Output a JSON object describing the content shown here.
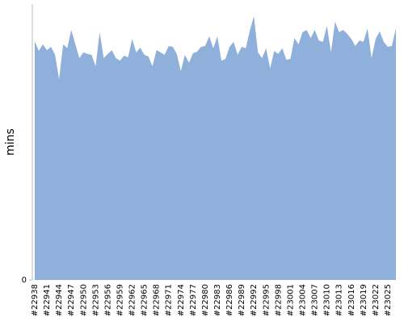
{
  "chart_data": {
    "type": "area",
    "y_label": "mins",
    "color": "#8fb0da",
    "categories": [
      "#22938",
      null,
      null,
      "#22941",
      null,
      null,
      "#22944",
      null,
      null,
      "#22947",
      null,
      null,
      "#22950",
      null,
      null,
      "#22953",
      null,
      null,
      "#22956",
      null,
      null,
      "#22959",
      null,
      null,
      "#22962",
      null,
      null,
      "#22965",
      null,
      null,
      "#22968",
      null,
      null,
      "#22971",
      null,
      null,
      "#22974",
      null,
      null,
      "#22977",
      null,
      null,
      "#22980",
      null,
      null,
      "#22983",
      null,
      null,
      "#22986",
      null,
      null,
      "#22989",
      null,
      null,
      "#22992",
      null,
      null,
      "#22995",
      null,
      null,
      "#22998",
      null,
      null,
      "#23001",
      null,
      null,
      "#23004",
      null,
      null,
      "#23007",
      null,
      null,
      "#23010",
      null,
      null,
      "#23013",
      null,
      null,
      "#23016",
      null,
      null,
      "#23019",
      null,
      null,
      "#23022",
      null,
      null,
      "#23025",
      null,
      null
    ],
    "values": [
      86.5,
      83,
      85.4,
      83.3,
      84.5,
      81.6,
      72.8,
      85.4,
      84,
      90.6,
      85.4,
      80.4,
      82.5,
      81.9,
      81.6,
      77.5,
      89.8,
      80.4,
      81.9,
      83.3,
      80.4,
      79.5,
      81.3,
      80.7,
      87.4,
      82.5,
      84.2,
      81.6,
      81,
      77.5,
      83.3,
      82.5,
      81.6,
      84.8,
      84.5,
      81.9,
      75.7,
      81.6,
      78.7,
      82.2,
      82.7,
      84.5,
      84.8,
      88.3,
      84,
      88.3,
      79.5,
      80.1,
      84.5,
      86.3,
      81.6,
      84.5,
      84,
      90.4,
      95.6,
      82.5,
      80.4,
      84,
      76.6,
      83,
      81.9,
      84,
      79.8,
      80.1,
      87.7,
      85.4,
      89.8,
      90.6,
      87.7,
      90.6,
      86.8,
      86.3,
      92.1,
      82.5,
      93.6,
      89.8,
      90.6,
      89.2,
      87.4,
      84.8,
      86.8,
      86.3,
      91.2,
      80.4,
      87.4,
      90.1,
      86.3,
      84.5,
      84.8,
      91.2
    ],
    "ylim": [
      0,
      100
    ],
    "yticks": [
      0
    ]
  }
}
